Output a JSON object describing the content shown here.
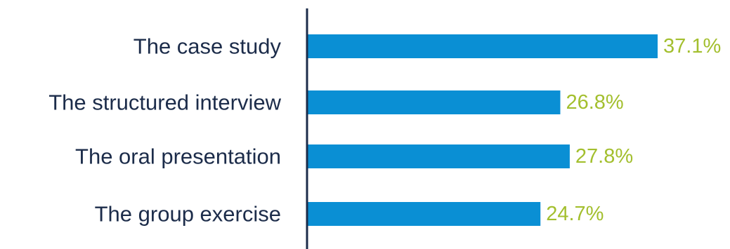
{
  "chart_data": {
    "type": "bar",
    "orientation": "horizontal",
    "categories": [
      "The case study",
      "The structured interview",
      "The oral presentation",
      "The group exercise"
    ],
    "values": [
      37.1,
      26.8,
      27.8,
      24.7
    ],
    "value_labels": [
      "37.1%",
      "26.8%",
      "27.8%",
      "24.7%"
    ],
    "unit": "%",
    "xlim": [
      0,
      37.1
    ],
    "title": "",
    "xlabel": "",
    "ylabel": "",
    "grid": false,
    "legend": "none",
    "colors": {
      "bar": "#0a8fd4",
      "value_label": "#a3bf2e",
      "category_label": "#1c2c4a",
      "axis": "#1c2c4a"
    }
  }
}
